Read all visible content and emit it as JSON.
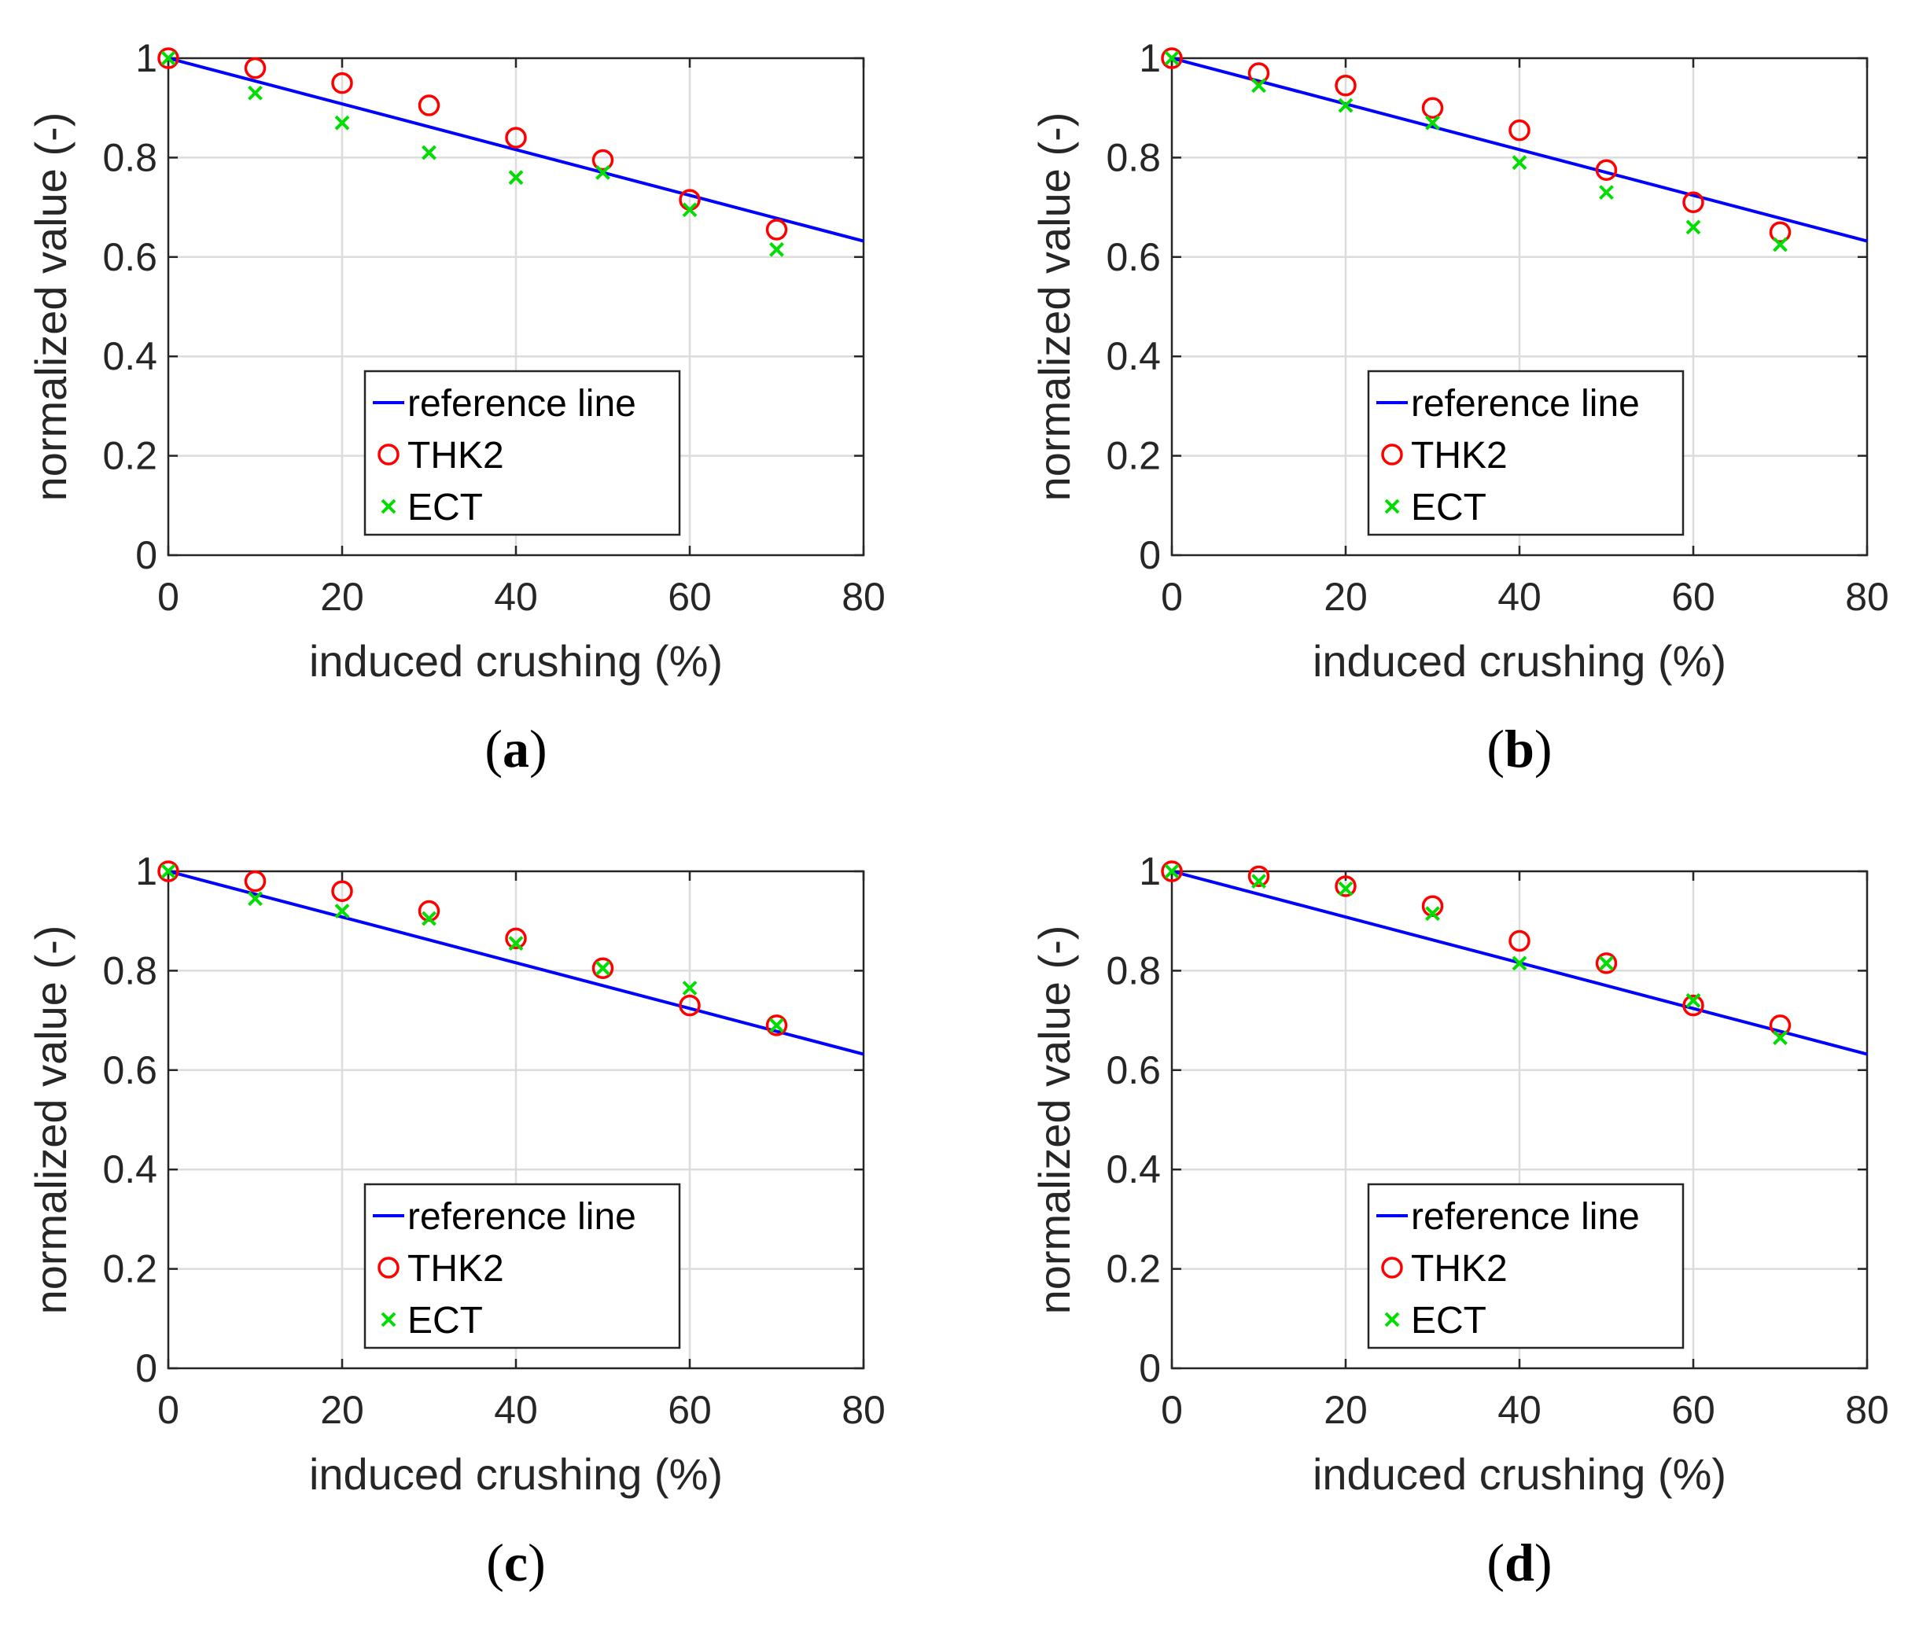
{
  "colors": {
    "reference": "#0000ff",
    "thk2": "#ff0000",
    "ect": "#00dd00",
    "axis": "#262626",
    "grid": "#dcdcdc"
  },
  "chart_data": [
    {
      "type": "scatter",
      "panel": "a",
      "caption": "(a)",
      "xlabel": "induced crushing (%)",
      "ylabel": "normalized value (-)",
      "xlim": [
        0,
        80
      ],
      "ylim": [
        0,
        1
      ],
      "xticks": [
        0,
        20,
        40,
        60,
        80
      ],
      "yticks": [
        0,
        0.2,
        0.4,
        0.6,
        0.8,
        1
      ],
      "ytick_labels": [
        "0",
        "0.2",
        "0.4",
        "0.6",
        "0.8",
        "1"
      ],
      "grid": true,
      "legend": "lower-center",
      "reference_line": {
        "name": "reference line",
        "x": [
          0,
          80
        ],
        "y": [
          1.0,
          0.632
        ]
      },
      "series": [
        {
          "name": "THK2",
          "marker": "circle",
          "x": [
            0,
            10,
            20,
            30,
            40,
            50,
            60,
            70
          ],
          "y": [
            1.0,
            0.98,
            0.95,
            0.905,
            0.84,
            0.795,
            0.715,
            0.655
          ]
        },
        {
          "name": "ECT",
          "marker": "x",
          "x": [
            0,
            10,
            20,
            30,
            40,
            50,
            60,
            70
          ],
          "y": [
            1.0,
            0.93,
            0.87,
            0.81,
            0.76,
            0.77,
            0.695,
            0.615
          ]
        }
      ]
    },
    {
      "type": "scatter",
      "panel": "b",
      "caption": "(b)",
      "xlabel": "induced crushing (%)",
      "ylabel": "normalized value (-)",
      "xlim": [
        0,
        80
      ],
      "ylim": [
        0,
        1
      ],
      "xticks": [
        0,
        20,
        40,
        60,
        80
      ],
      "yticks": [
        0,
        0.2,
        0.4,
        0.6,
        0.8,
        1
      ],
      "ytick_labels": [
        "0",
        "0.2",
        "0.4",
        "0.6",
        "0.8",
        "1"
      ],
      "grid": true,
      "legend": "lower-center",
      "reference_line": {
        "name": "reference line",
        "x": [
          0,
          80
        ],
        "y": [
          1.0,
          0.632
        ]
      },
      "series": [
        {
          "name": "THK2",
          "marker": "circle",
          "x": [
            0,
            10,
            20,
            30,
            40,
            50,
            60,
            70
          ],
          "y": [
            1.0,
            0.97,
            0.945,
            0.9,
            0.855,
            0.775,
            0.71,
            0.65
          ]
        },
        {
          "name": "ECT",
          "marker": "x",
          "x": [
            0,
            10,
            20,
            30,
            40,
            50,
            60,
            70
          ],
          "y": [
            1.0,
            0.945,
            0.905,
            0.87,
            0.79,
            0.73,
            0.66,
            0.625
          ]
        }
      ]
    },
    {
      "type": "scatter",
      "panel": "c",
      "caption": "(c)",
      "xlabel": "induced crushing (%)",
      "ylabel": "normalized value (-)",
      "xlim": [
        0,
        80
      ],
      "ylim": [
        0,
        1
      ],
      "xticks": [
        0,
        20,
        40,
        60,
        80
      ],
      "yticks": [
        0,
        0.2,
        0.4,
        0.6,
        0.8,
        1
      ],
      "ytick_labels": [
        "0",
        "0.2",
        "0.4",
        "0.6",
        "0.8",
        "1"
      ],
      "grid": true,
      "legend": "lower-center",
      "reference_line": {
        "name": "reference line",
        "x": [
          0,
          80
        ],
        "y": [
          1.0,
          0.632
        ]
      },
      "series": [
        {
          "name": "THK2",
          "marker": "circle",
          "x": [
            0,
            10,
            20,
            30,
            40,
            50,
            60,
            70
          ],
          "y": [
            1.0,
            0.98,
            0.96,
            0.92,
            0.865,
            0.805,
            0.73,
            0.69
          ]
        },
        {
          "name": "ECT",
          "marker": "x",
          "x": [
            0,
            10,
            20,
            30,
            40,
            50,
            60,
            70
          ],
          "y": [
            1.0,
            0.945,
            0.92,
            0.905,
            0.855,
            0.805,
            0.765,
            0.69
          ]
        }
      ]
    },
    {
      "type": "scatter",
      "panel": "d",
      "caption": "(d)",
      "xlabel": "induced crushing (%)",
      "ylabel": "normalized value (-)",
      "xlim": [
        0,
        80
      ],
      "ylim": [
        0,
        1
      ],
      "xticks": [
        0,
        20,
        40,
        60,
        80
      ],
      "yticks": [
        0,
        0.2,
        0.4,
        0.6,
        0.8,
        1
      ],
      "ytick_labels": [
        "0",
        "0.2",
        "0.4",
        "0.6",
        "0.8",
        "1"
      ],
      "grid": true,
      "legend": "lower-center",
      "reference_line": {
        "name": "reference line",
        "x": [
          0,
          80
        ],
        "y": [
          1.0,
          0.632
        ]
      },
      "series": [
        {
          "name": "THK2",
          "marker": "circle",
          "x": [
            0,
            10,
            20,
            30,
            40,
            50,
            60,
            70
          ],
          "y": [
            1.0,
            0.99,
            0.97,
            0.93,
            0.86,
            0.815,
            0.73,
            0.69
          ]
        },
        {
          "name": "ECT",
          "marker": "x",
          "x": [
            0,
            10,
            20,
            30,
            40,
            50,
            60,
            70
          ],
          "y": [
            1.0,
            0.98,
            0.965,
            0.915,
            0.815,
            0.815,
            0.74,
            0.665
          ]
        }
      ]
    }
  ]
}
